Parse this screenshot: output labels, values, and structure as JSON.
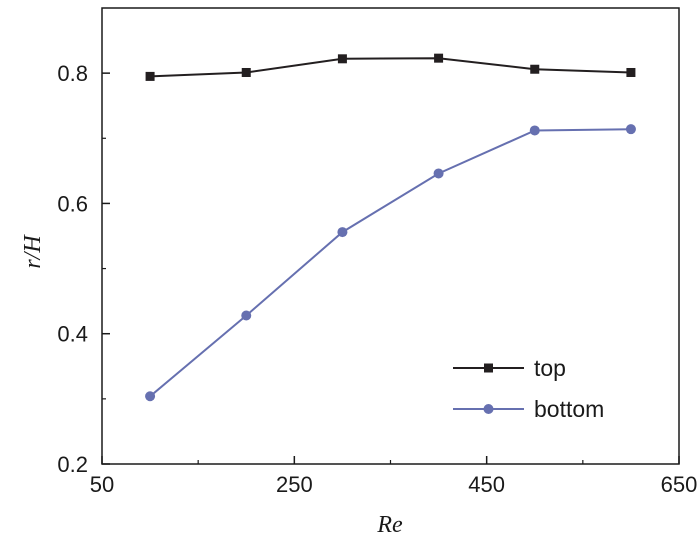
{
  "chart_data": {
    "type": "line",
    "title": "",
    "xlabel": "Re",
    "ylabel_italic": "r",
    "ylabel_rest": "/H",
    "xlim": [
      50,
      650
    ],
    "ylim": [
      0.2,
      0.9
    ],
    "xticks": [
      50,
      250,
      450,
      650
    ],
    "xtick_labels": [
      "50",
      "250",
      "450",
      "650"
    ],
    "xminor": [
      150,
      350,
      550
    ],
    "yticks": [
      0.2,
      0.4,
      0.6,
      0.8
    ],
    "ytick_labels": [
      "0.2",
      "0.4",
      "0.6",
      "0.8"
    ],
    "yminor": [
      0.3,
      0.5,
      0.7
    ],
    "grid": false,
    "legend_position": "bottom-right",
    "series": [
      {
        "name": "top",
        "color": "#231f20",
        "marker": "square",
        "x": [
          100,
          200,
          300,
          400,
          500,
          600
        ],
        "y": [
          0.795,
          0.801,
          0.822,
          0.823,
          0.806,
          0.801
        ]
      },
      {
        "name": "bottom",
        "color": "#6670b0",
        "marker": "circle",
        "x": [
          100,
          200,
          300,
          400,
          500,
          600
        ],
        "y": [
          0.304,
          0.428,
          0.556,
          0.646,
          0.712,
          0.714
        ]
      }
    ]
  }
}
